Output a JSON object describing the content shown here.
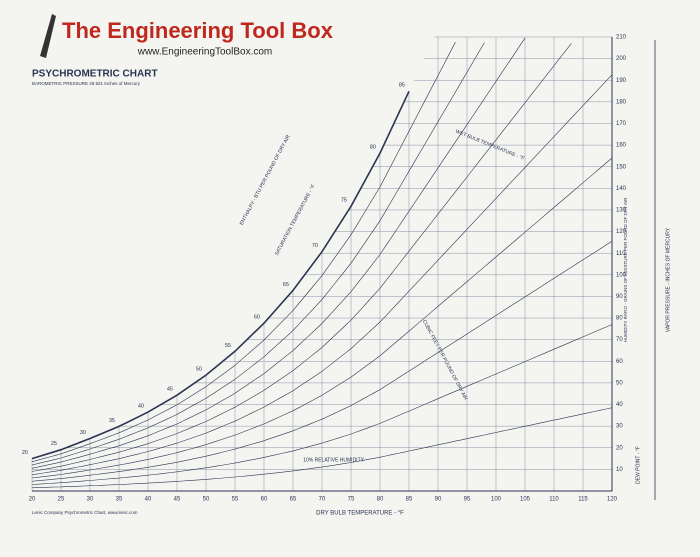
{
  "header": {
    "brand": "The Engineering Tool Box",
    "url": "www.EngineeringToolBox.com"
  },
  "chart_data": {
    "type": "psychrometric",
    "title": "PSYCHROMETRIC CHART",
    "subtitle": "BAROMETRIC PRESSURE 29.921 Inches of Mercury",
    "x_label": "DRY BULB TEMPERATURE - °F",
    "y_label": "HUMIDITY RATIO - GRAINS OF MOISTURE PER POUND OF DRY AIR",
    "enthalpy_label": "ENTHALPY - BTU PER POUND OF DRY AIR",
    "saturation_label": "SATURATION TEMPERATURE - °F",
    "wet_bulb_label": "WET BULB TEMPERATURE - °F",
    "volume_label": "CUBIC FEET PER POUND OF DRY AIR",
    "vapor_pressure_label": "VAPOR PRESSURE - INCHES OF MERCURY",
    "dew_point_label": "DEW POINT - °F",
    "rh_label": "10% RELATIVE HUMIDITY",
    "credit": "Lenic Company Psychrometric Chart, www.lenic.com",
    "xlim": [
      20,
      120
    ],
    "xticks": [
      20,
      25,
      30,
      35,
      40,
      45,
      50,
      55,
      60,
      65,
      70,
      75,
      80,
      85,
      90,
      95,
      100,
      105,
      110,
      115,
      120
    ],
    "ylim": [
      0,
      210
    ],
    "yticks": [
      10,
      20,
      30,
      40,
      50,
      60,
      70,
      80,
      90,
      100,
      110,
      120,
      130,
      140,
      150,
      160,
      170,
      180,
      190,
      200,
      210
    ],
    "saturation": {
      "x": [
        20,
        25,
        30,
        35,
        40,
        45,
        50,
        55,
        60,
        65,
        70,
        75,
        80,
        85
      ],
      "values": [
        15,
        19.1,
        24.3,
        29.9,
        36.5,
        44.3,
        53.6,
        64.6,
        77.6,
        92.8,
        110.7,
        131.7,
        156.3,
        184.9
      ]
    },
    "relative_humidity_lines": [
      10,
      20,
      30,
      40,
      50,
      60,
      70,
      80,
      90
    ],
    "color": "#2a3550",
    "grid": true
  }
}
